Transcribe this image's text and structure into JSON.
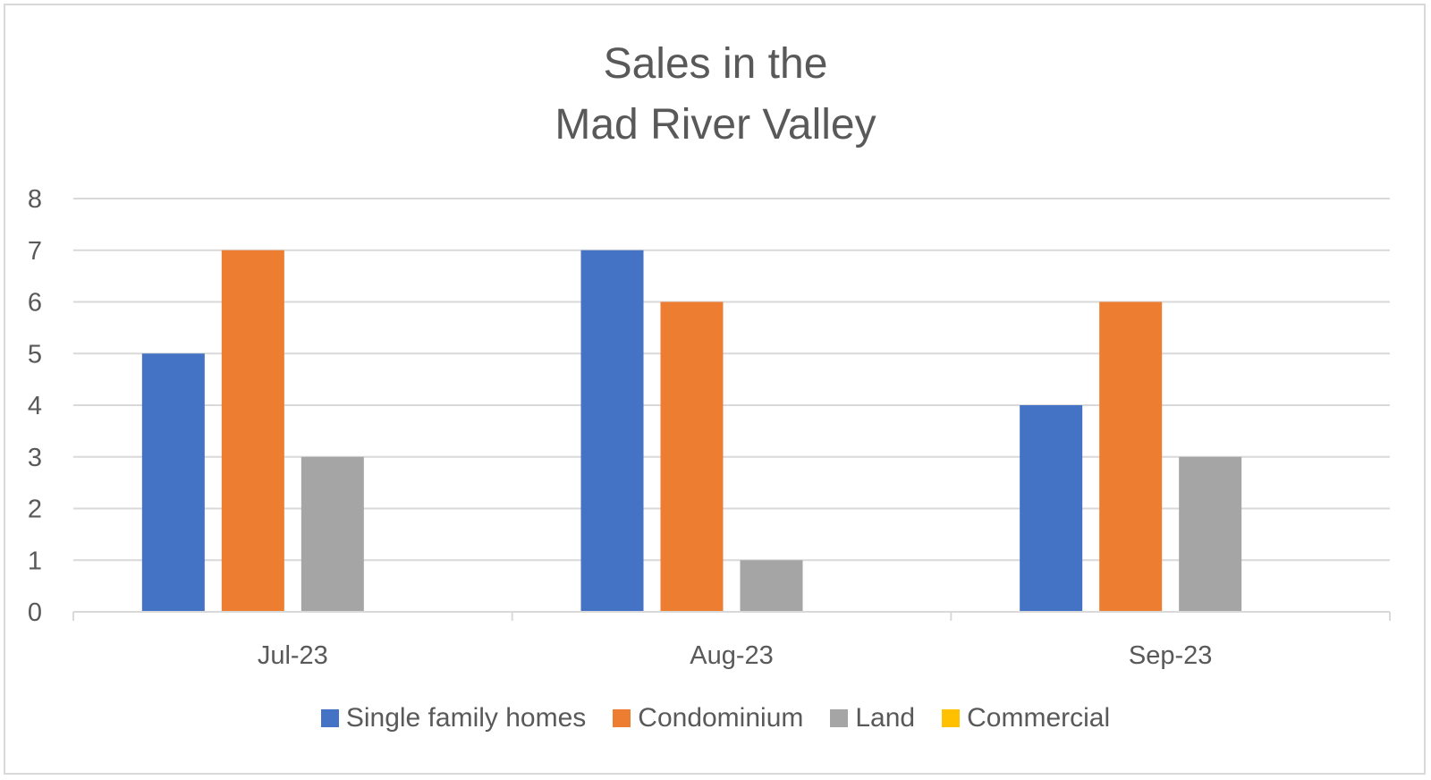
{
  "chart_data": {
    "type": "bar",
    "title_lines": [
      "Sales in the",
      "Mad River Valley"
    ],
    "xlabel": "",
    "ylabel": "",
    "categories": [
      "Jul-23",
      "Aug-23",
      "Sep-23"
    ],
    "series": [
      {
        "name": "Single family homes",
        "color": "#4472c4",
        "values": [
          5,
          7,
          4
        ]
      },
      {
        "name": "Condominium",
        "color": "#ed7d31",
        "values": [
          7,
          6,
          6
        ]
      },
      {
        "name": "Land",
        "color": "#a5a5a5",
        "values": [
          3,
          1,
          3
        ]
      },
      {
        "name": "Commercial",
        "color": "#ffc000",
        "values": [
          0,
          0,
          0
        ]
      }
    ],
    "ylim": [
      0,
      8
    ],
    "yticks": [
      0,
      1,
      2,
      3,
      4,
      5,
      6,
      7,
      8
    ],
    "grid": true,
    "legend_position": "bottom"
  },
  "colors": {
    "gridline": "#d9d9d9",
    "axis_text": "#595959"
  }
}
